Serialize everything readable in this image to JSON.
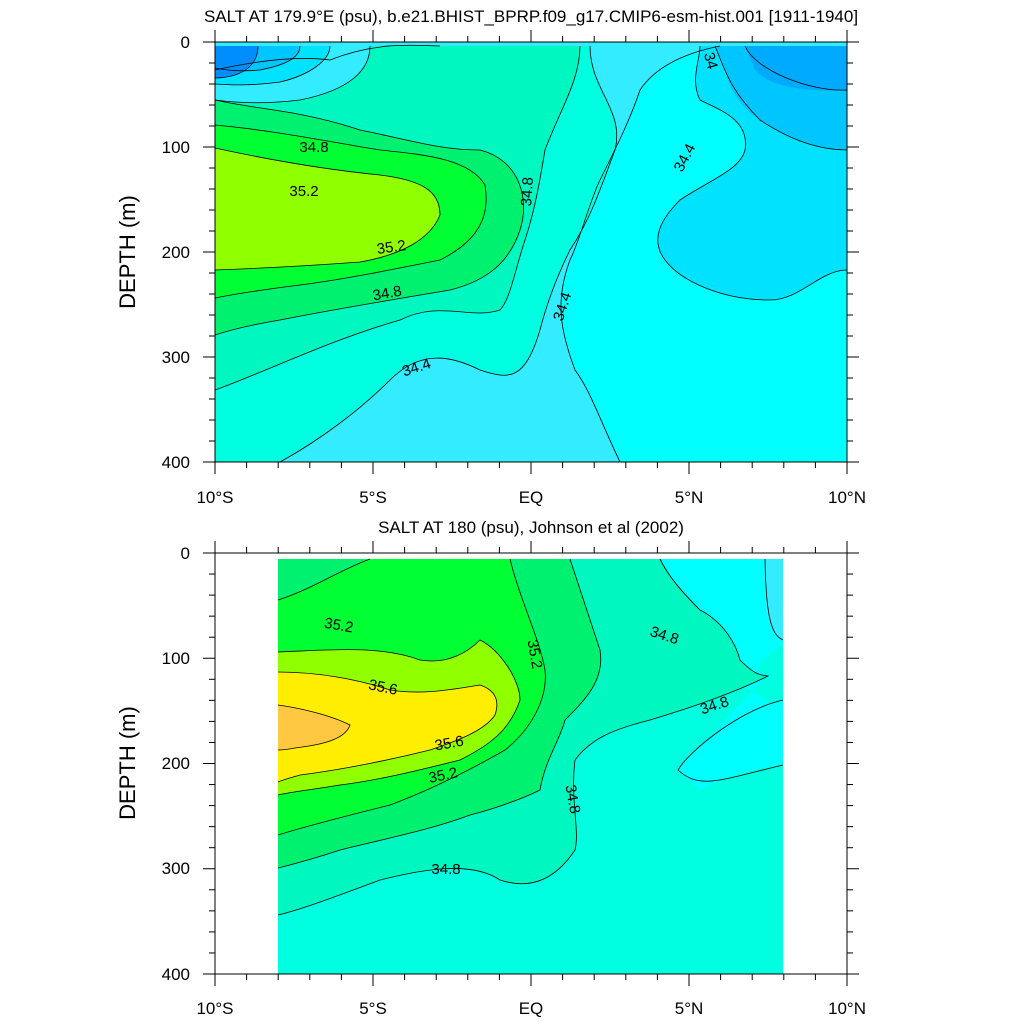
{
  "colors": {
    "c33_4": "#008eff",
    "c33_6": "#00aaff",
    "c33_8": "#00c6ff",
    "c34_0": "#00e2ff",
    "c34_2": "#33ecff",
    "c34_4": "#00ffff",
    "c34_6": "#00ffe0",
    "c34_8": "#00f7c0",
    "c35_0": "#00f070",
    "c35_2": "#00ff33",
    "c35_4": "#90ff00",
    "c35_6": "#ffee00",
    "c35_8": "#ffc840",
    "line": "#000000",
    "frame": "#000000"
  },
  "chart_data": [
    {
      "type": "contour",
      "title": "SALT AT 179.9°E (psu), b.e21.BHIST_BPRP.f09_g17.CMIP6-esm-hist.001 [1911-1940]",
      "ylabel": "DEPTH (m)",
      "xlabel": "",
      "xlim": [
        -10,
        10
      ],
      "ylim": [
        400,
        0
      ],
      "y_inverted": true,
      "xticks": [
        "10°S",
        "5°S",
        "EQ",
        "5°N",
        "10°N"
      ],
      "yticks": [
        "0",
        "100",
        "200",
        "300",
        "400"
      ],
      "contour_labels": [
        "34",
        "34.4",
        "34.4",
        "34.4",
        "34.8",
        "34.8",
        "34.8",
        "35.2",
        "35.2"
      ],
      "salinity_range": [
        33.4,
        35.4
      ]
    },
    {
      "type": "contour",
      "title": "SALT AT 180 (psu), Johnson et al (2002)",
      "ylabel": "DEPTH (m)",
      "xlabel": "",
      "xlim": [
        -10,
        10
      ],
      "ylim": [
        400,
        0
      ],
      "y_inverted": true,
      "xticks": [
        "10°S",
        "5°S",
        "EQ",
        "5°N",
        "10°N"
      ],
      "yticks": [
        "0",
        "100",
        "200",
        "300",
        "400"
      ],
      "contour_labels": [
        "34.8",
        "34.8",
        "34.8",
        "34.8",
        "35.2",
        "35.2",
        "35.2",
        "35.6",
        "35.6"
      ],
      "data_extent_lat": [
        -8,
        8
      ],
      "salinity_range": [
        34.2,
        35.8
      ]
    }
  ]
}
